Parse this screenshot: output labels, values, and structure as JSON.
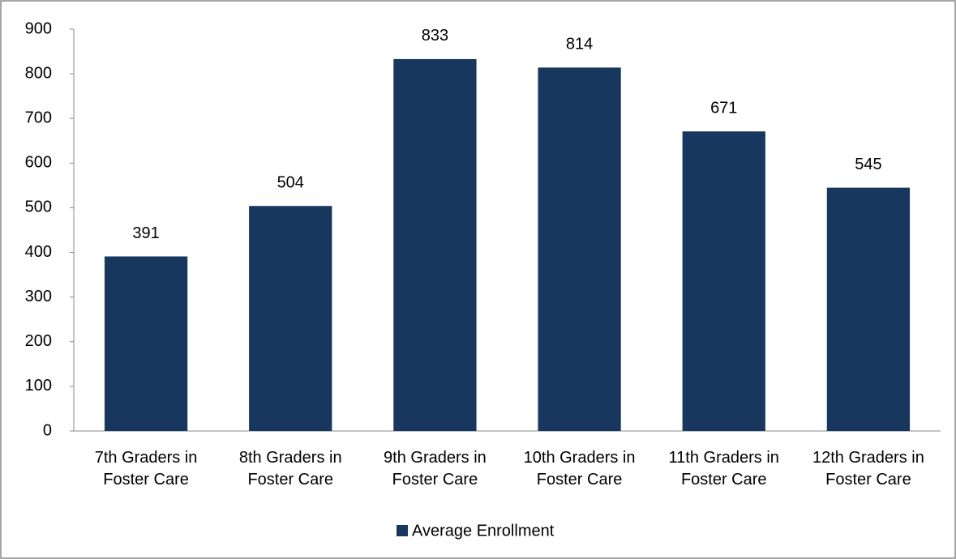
{
  "chart_data": {
    "type": "bar",
    "categories": [
      "7th Graders in Foster Care",
      "8th Graders in Foster Care",
      "9th Graders in Foster Care",
      "10th Graders in Foster Care",
      "11th Graders in Foster Care",
      "12th Graders in Foster Care"
    ],
    "series": [
      {
        "name": "Average Enrollment",
        "color": "#17375e",
        "values": [
          391,
          504,
          833,
          814,
          671,
          545
        ]
      }
    ],
    "ylim": [
      0,
      900
    ],
    "yticks": [
      0,
      100,
      200,
      300,
      400,
      500,
      600,
      700,
      800,
      900
    ],
    "grid": false,
    "legend": "bottom"
  }
}
